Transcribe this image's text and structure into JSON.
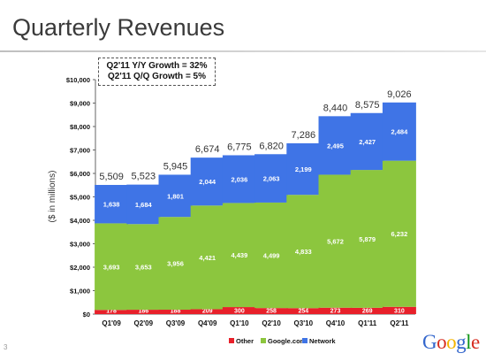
{
  "slide": {
    "title": "Quarterly Revenues",
    "page_number": "3",
    "callout_line1": "Q2'11 Y/Y Growth = 32%",
    "callout_line2": "Q2'11 Q/Q Growth = 5%",
    "logo_letters": [
      "G",
      "o",
      "o",
      "g",
      "l",
      "e"
    ],
    "logo_colors": [
      "#3366cc",
      "#d62d20",
      "#f4b400",
      "#3366cc",
      "#109618",
      "#d62d20"
    ]
  },
  "chart_data": {
    "type": "bar",
    "stacked": true,
    "ylabel": "($ in millions)",
    "ylim": [
      0,
      10000
    ],
    "yticks": [
      0,
      1000,
      2000,
      3000,
      4000,
      5000,
      6000,
      7000,
      8000,
      9000,
      10000
    ],
    "ytick_labels": [
      "$0",
      "$1,000",
      "$2,000",
      "$3,000",
      "$4,000",
      "$5,000",
      "$6,000",
      "$7,000",
      "$8,000",
      "$9,000",
      "$10,000"
    ],
    "categories": [
      "Q1'09",
      "Q2'09",
      "Q3'09",
      "Q4'09",
      "Q1'10",
      "Q2'10",
      "Q3'10",
      "Q4'10",
      "Q1'11",
      "Q2'11"
    ],
    "series": [
      {
        "name": "Other",
        "color": "#e8202a",
        "values": [
          178,
          186,
          188,
          209,
          300,
          258,
          254,
          273,
          269,
          310
        ]
      },
      {
        "name": "Google.com",
        "color": "#8cc63e",
        "values": [
          3693,
          3653,
          3956,
          4421,
          4439,
          4499,
          4833,
          5672,
          5879,
          6232
        ]
      },
      {
        "name": "Network",
        "color": "#3f74e6",
        "values": [
          1638,
          1684,
          1801,
          2044,
          2036,
          2063,
          2199,
          2495,
          2427,
          2484
        ]
      }
    ],
    "totals": [
      5509,
      5523,
      5945,
      6674,
      6775,
      6820,
      7286,
      8440,
      8575,
      9026
    ],
    "total_labels": [
      "5,509",
      "5,523",
      "5,945",
      "6,674",
      "6,775",
      "6,820",
      "7,286",
      "8,440",
      "8,575",
      "9,026"
    ],
    "network_labels": [
      "1,638",
      "1,684",
      "1,801",
      "2,044",
      "2,036",
      "2,063",
      "2,199",
      "2,495",
      "2,427",
      "2,484"
    ],
    "google_labels": [
      "3,693",
      "3,653",
      "3,956",
      "4,421",
      "4,439",
      "4,499",
      "4,833",
      "5,672",
      "5,879",
      "6,232"
    ],
    "other_labels": [
      "178",
      "186",
      "188",
      "209",
      "300",
      "258",
      "254",
      "273",
      "269",
      "310"
    ],
    "legend": [
      "Other",
      "Google.com",
      "Network"
    ],
    "legend_position": "bottom"
  }
}
